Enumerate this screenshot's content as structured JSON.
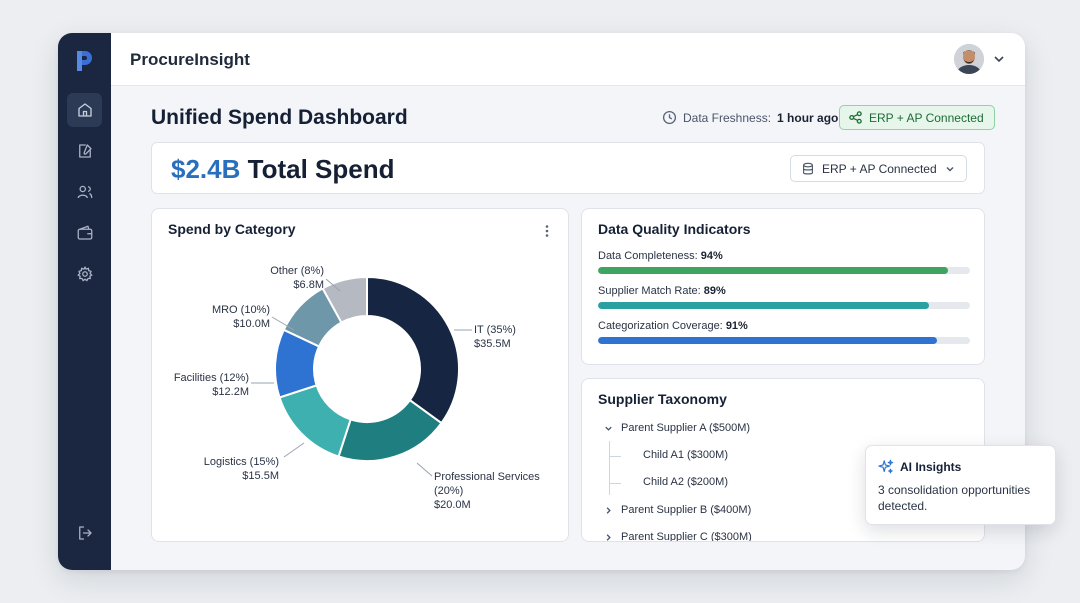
{
  "app": {
    "brand": "ProcureInsight"
  },
  "sidebar": {
    "items": [
      {
        "name": "home",
        "icon": "home-icon",
        "active": true
      },
      {
        "name": "requests",
        "icon": "document-edit-icon",
        "active": false
      },
      {
        "name": "suppliers",
        "icon": "users-icon",
        "active": false
      },
      {
        "name": "wallet",
        "icon": "wallet-icon",
        "active": false
      },
      {
        "name": "settings",
        "icon": "gear-icon",
        "active": false
      }
    ],
    "logout_icon": "logout-icon"
  },
  "header": {
    "title": "Unified Spend Dashboard",
    "freshness_label": "Data Freshness:",
    "freshness_value": "1 hour ago",
    "connection_badge": "ERP + AP Connected"
  },
  "total": {
    "amount": "$2.4B",
    "label": "Total Spend",
    "source_select": "ERP + AP Connected"
  },
  "category_card": {
    "title": "Spend by Category"
  },
  "chart_data": {
    "type": "pie",
    "title": "Spend by Category",
    "donut": true,
    "categories": [
      "IT",
      "Professional Services",
      "Logistics",
      "Facilities",
      "MRO",
      "Other"
    ],
    "values": [
      35,
      20,
      15,
      12,
      10,
      8
    ],
    "amounts": [
      "$35.5M",
      "$20.0M",
      "$15.5M",
      "$12.2M",
      "$10.0M",
      "$6.8M"
    ],
    "colors": [
      "#162542",
      "#1f7f80",
      "#3fb0b0",
      "#2f73d2",
      "#6f97aa",
      "#b4b9c2"
    ],
    "labels": [
      {
        "line1": "IT (35%)",
        "line2": "$35.5M"
      },
      {
        "line1": "Professional Services",
        "line2": "(20%)",
        "line3": "$20.0M"
      },
      {
        "line1": "Logistics (15%)",
        "line2": "$15.5M"
      },
      {
        "line1": "Facilities (12%)",
        "line2": "$12.2M"
      },
      {
        "line1": "MRO (10%)",
        "line2": "$10.0M"
      },
      {
        "line1": "Other (8%)",
        "line2": "$6.8M"
      }
    ]
  },
  "data_quality": {
    "title": "Data Quality Indicators",
    "indicators": [
      {
        "label": "Data Completeness:",
        "value": "94%",
        "fraction": 0.94,
        "color": "#3fa45f"
      },
      {
        "label": "Supplier Match Rate:",
        "value": "89%",
        "fraction": 0.89,
        "color": "#2aa0a0"
      },
      {
        "label": "Categorization Coverage:",
        "value": "91%",
        "fraction": 0.91,
        "color": "#2f73d2"
      }
    ]
  },
  "taxonomy": {
    "title": "Supplier Taxonomy",
    "parents": [
      {
        "label": "Parent Supplier A ($500M)",
        "expanded": true
      },
      {
        "label": "Parent Supplier B ($400M)",
        "expanded": false
      },
      {
        "label": "Parent Supplier C ($300M)",
        "expanded": false
      }
    ],
    "children": [
      {
        "label": "Child A1 ($300M)"
      },
      {
        "label": "Child A2 ($200M)"
      }
    ]
  },
  "ai_insights": {
    "title": "AI Insights",
    "body": "3 consolidation opportunities detected."
  }
}
